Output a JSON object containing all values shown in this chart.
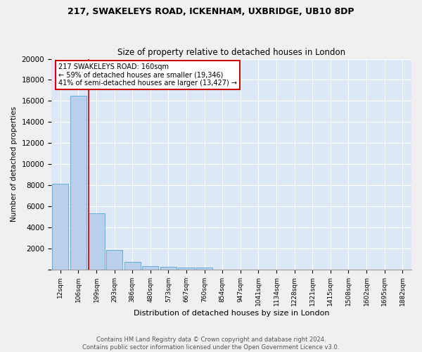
{
  "title1": "217, SWAKELEYS ROAD, ICKENHAM, UXBRIDGE, UB10 8DP",
  "title2": "Size of property relative to detached houses in London",
  "xlabel": "Distribution of detached houses by size in London",
  "ylabel": "Number of detached properties",
  "bar_values": [
    8100,
    16500,
    5300,
    1850,
    700,
    320,
    230,
    200,
    180,
    0,
    0,
    0,
    0,
    0,
    0,
    0,
    0,
    0,
    0,
    0
  ],
  "bar_labels": [
    "12sqm",
    "106sqm",
    "199sqm",
    "293sqm",
    "386sqm",
    "480sqm",
    "573sqm",
    "667sqm",
    "760sqm",
    "854sqm",
    "947sqm",
    "1041sqm",
    "1134sqm",
    "1228sqm",
    "1321sqm",
    "1415sqm",
    "1508sqm",
    "1602sqm",
    "1695sqm",
    "1882sqm"
  ],
  "bar_color": "#b8d0eb",
  "bar_edge_color": "#6aaed6",
  "background_color": "#dce8f5",
  "grid_color": "#ffffff",
  "vline_color": "#cc0000",
  "annotation_text": "217 SWAKELEYS ROAD: 160sqm\n← 59% of detached houses are smaller (19,346)\n41% of semi-detached houses are larger (13,427) →",
  "annotation_box_color": "#ffffff",
  "annotation_box_edge": "#cc0000",
  "footnote": "Contains HM Land Registry data © Crown copyright and database right 2024.\nContains public sector information licensed under the Open Government Licence v3.0.",
  "fig_bg": "#f0f0f0",
  "ylim": [
    0,
    20000
  ],
  "yticks": [
    0,
    2000,
    4000,
    6000,
    8000,
    10000,
    12000,
    14000,
    16000,
    18000,
    20000
  ]
}
